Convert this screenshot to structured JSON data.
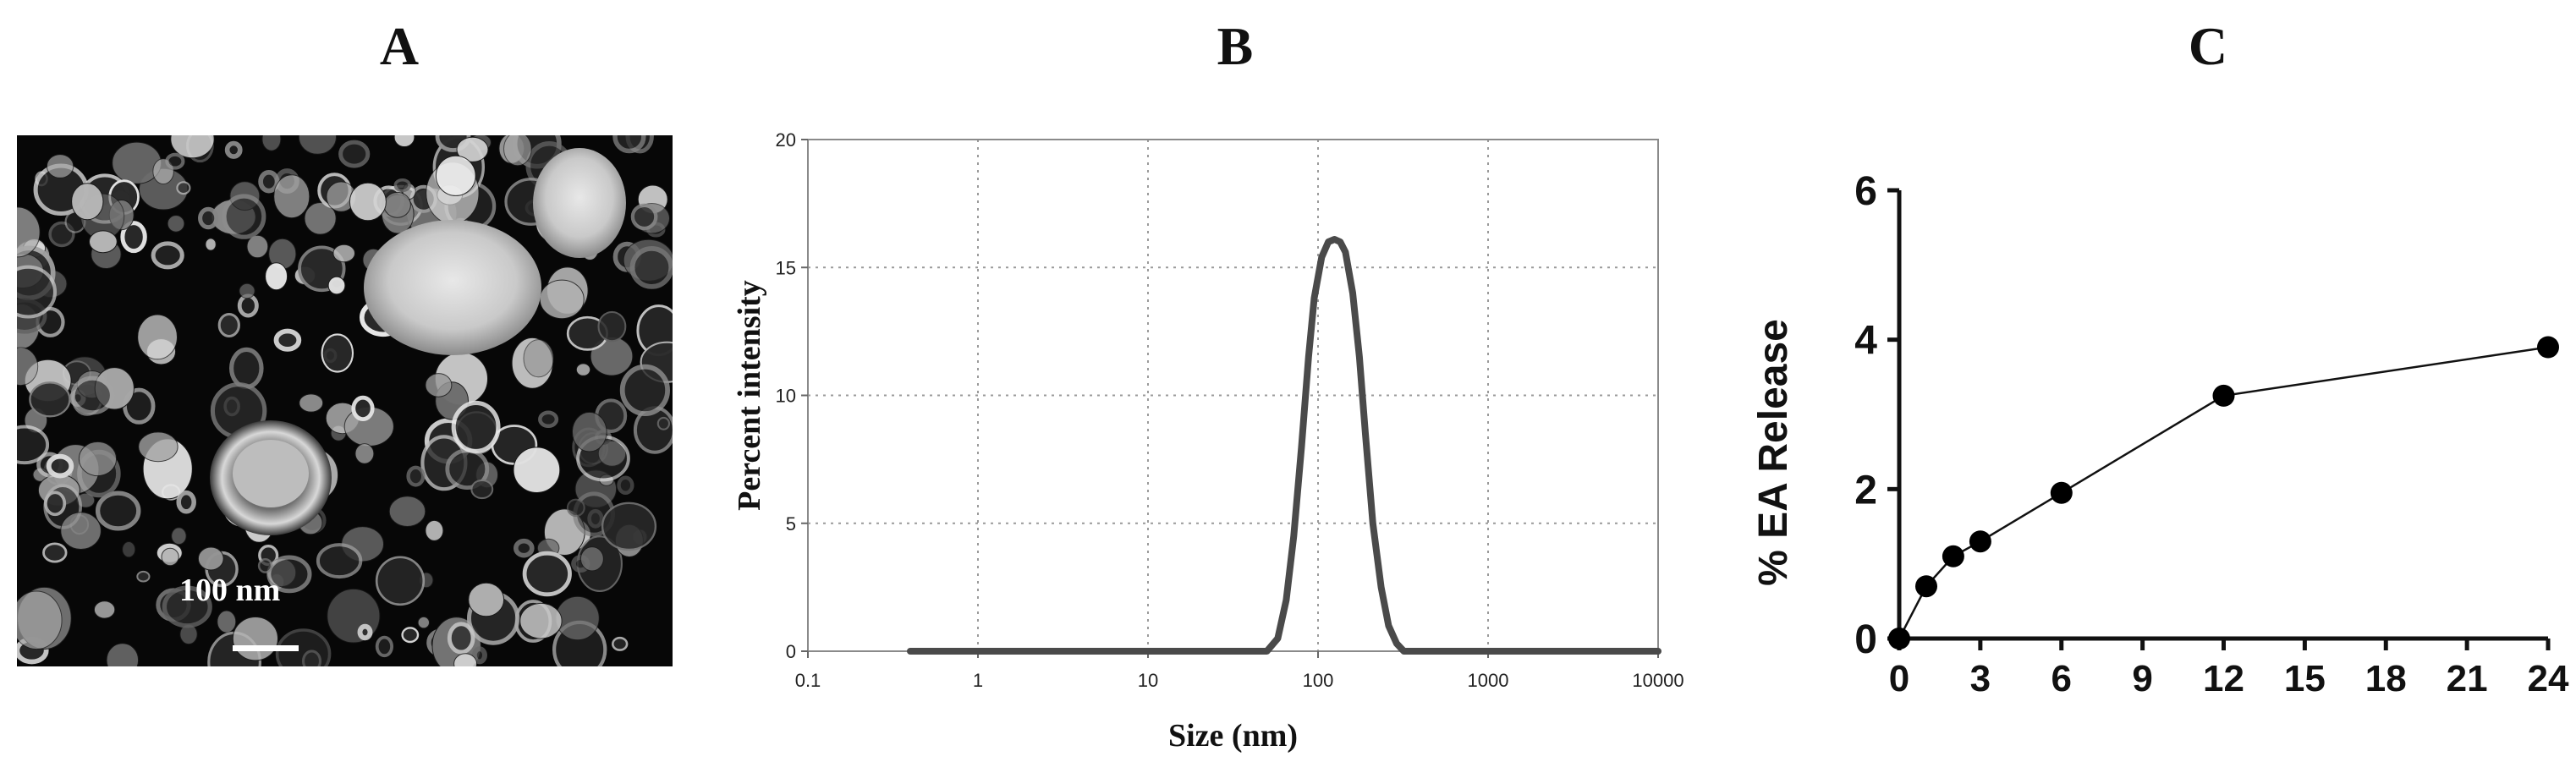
{
  "panels": {
    "a_label": "A",
    "b_label": "B",
    "c_label": "C"
  },
  "micrograph": {
    "scale_label": "100 nm"
  },
  "chart_data": [
    {
      "type": "line",
      "panel": "B",
      "xlabel": "Size (nm)",
      "ylabel": "Percent intensity",
      "xscale": "log",
      "xlim": [
        0.1,
        10000
      ],
      "ylim": [
        0,
        20
      ],
      "xticks": [
        "0.1",
        "1",
        "10",
        "100",
        "1000",
        "10000"
      ],
      "yticks": [
        "0",
        "5",
        "10",
        "15",
        "20"
      ],
      "grid": true,
      "series": [
        {
          "x": [
            0.4,
            50,
            58,
            65,
            72,
            80,
            88,
            95,
            105,
            115,
            125,
            135,
            145,
            160,
            175,
            190,
            210,
            235,
            260,
            290,
            320,
            350,
            10000
          ],
          "y": [
            0,
            0,
            0.5,
            2.0,
            4.5,
            8.0,
            11.5,
            13.8,
            15.4,
            16.0,
            16.1,
            16.0,
            15.6,
            14.0,
            11.5,
            8.5,
            5.0,
            2.5,
            1.0,
            0.3,
            0,
            0,
            0
          ]
        }
      ],
      "line_color": "#4a4a4a"
    },
    {
      "type": "line",
      "panel": "C",
      "xlabel": "",
      "ylabel": "% EA Release",
      "xlim": [
        0,
        24
      ],
      "ylim": [
        0,
        6
      ],
      "xticks": [
        "0",
        "3",
        "6",
        "9",
        "12",
        "15",
        "18",
        "21",
        "24"
      ],
      "yticks": [
        "0",
        "2",
        "4",
        "6"
      ],
      "grid": false,
      "series": [
        {
          "x": [
            0,
            1,
            2,
            3,
            6,
            12,
            24
          ],
          "y": [
            0,
            0.7,
            1.1,
            1.3,
            1.95,
            3.25,
            3.9
          ]
        }
      ],
      "marker": "circle",
      "line_color": "#111111"
    }
  ]
}
